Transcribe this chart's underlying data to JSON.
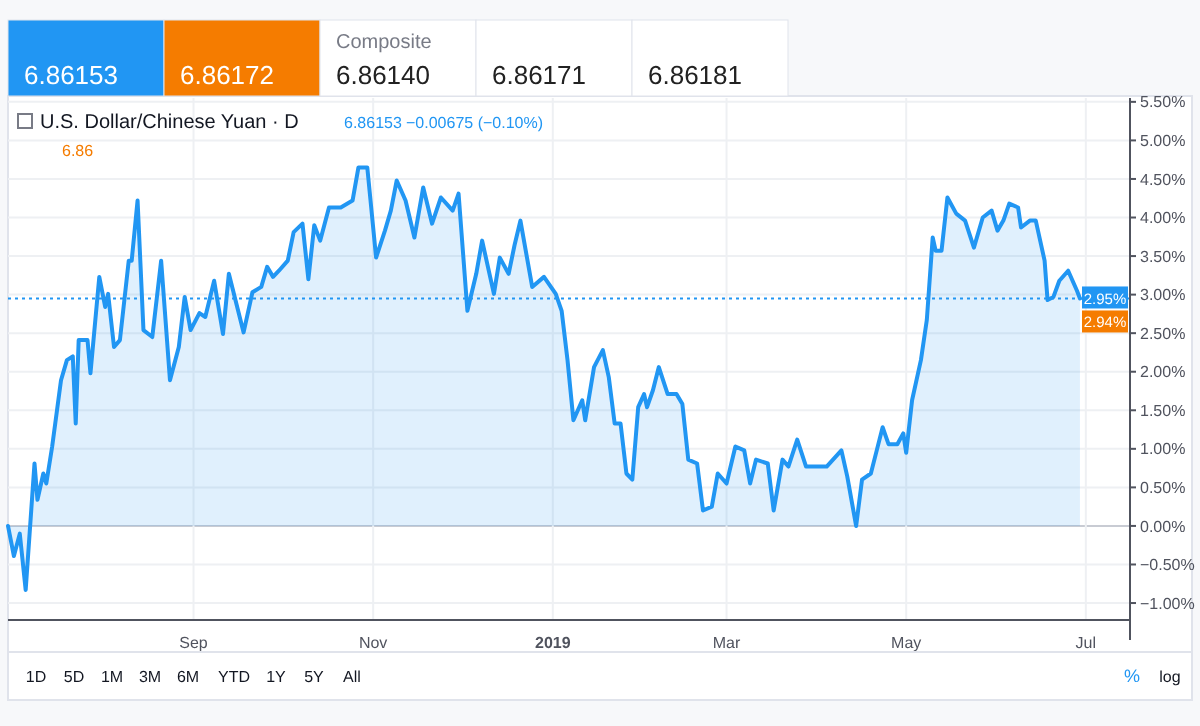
{
  "chart_data": {
    "type": "area",
    "title": "U.S. Dollar/Chinese Yuan · D",
    "series": [
      {
        "color": "#2196f3",
        "x": [
          "2018-06-30",
          "2018-07-02",
          "2018-07-04",
          "2018-07-06",
          "2018-07-09",
          "2018-07-10",
          "2018-07-12",
          "2018-07-13",
          "2018-07-15",
          "2018-07-18",
          "2018-07-20",
          "2018-07-22",
          "2018-07-23",
          "2018-07-24",
          "2018-07-27",
          "2018-07-28",
          "2018-07-31",
          "2018-08-02",
          "2018-08-03",
          "2018-08-05",
          "2018-08-07",
          "2018-08-10",
          "2018-08-11",
          "2018-08-13",
          "2018-08-15",
          "2018-08-18",
          "2018-08-21",
          "2018-08-24",
          "2018-08-27",
          "2018-08-29",
          "2018-08-31",
          "2018-09-03",
          "2018-09-05",
          "2018-09-08",
          "2018-09-11",
          "2018-09-13",
          "2018-09-18",
          "2018-09-21",
          "2018-09-24",
          "2018-09-26",
          "2018-09-28",
          "2018-09-30",
          "2018-10-03",
          "2018-10-05",
          "2018-10-08",
          "2018-10-10",
          "2018-10-12",
          "2018-10-14",
          "2018-10-17",
          "2018-10-21",
          "2018-10-25",
          "2018-10-27",
          "2018-10-30",
          "2018-11-02",
          "2018-11-05",
          "2018-11-07",
          "2018-11-09",
          "2018-11-12",
          "2018-11-15",
          "2018-11-18",
          "2018-11-21",
          "2018-11-24",
          "2018-11-28",
          "2018-11-30",
          "2018-12-03",
          "2018-12-06",
          "2018-12-08",
          "2018-12-12",
          "2018-12-14",
          "2018-12-17",
          "2018-12-19",
          "2018-12-21",
          "2018-12-25",
          "2018-12-29",
          "2019-01-02",
          "2019-01-04",
          "2019-01-06",
          "2019-01-08",
          "2019-01-11",
          "2019-01-12",
          "2019-01-15",
          "2019-01-18",
          "2019-01-20",
          "2019-01-22",
          "2019-01-24",
          "2019-01-26",
          "2019-01-28",
          "2019-01-30",
          "2019-02-01",
          "2019-02-02",
          "2019-02-04",
          "2019-02-06",
          "2019-02-09",
          "2019-02-12",
          "2019-02-14",
          "2019-02-16",
          "2019-02-19",
          "2019-02-21",
          "2019-02-24",
          "2019-02-26",
          "2019-03-01",
          "2019-03-04",
          "2019-03-07",
          "2019-03-09",
          "2019-03-11",
          "2019-03-15",
          "2019-03-17",
          "2019-03-20",
          "2019-03-22",
          "2019-03-25",
          "2019-03-28",
          "2019-04-01",
          "2019-04-04",
          "2019-04-09",
          "2019-04-11",
          "2019-04-14",
          "2019-04-16",
          "2019-04-19",
          "2019-04-21",
          "2019-04-23",
          "2019-04-25",
          "2019-04-28",
          "2019-04-30",
          "2019-05-01",
          "2019-05-03",
          "2019-05-06",
          "2019-05-08",
          "2019-05-10",
          "2019-05-11",
          "2019-05-13",
          "2019-05-15",
          "2019-05-18",
          "2019-05-21",
          "2019-05-24",
          "2019-05-27",
          "2019-05-30",
          "2019-06-01",
          "2019-06-03",
          "2019-06-05",
          "2019-06-08",
          "2019-06-09",
          "2019-06-12",
          "2019-06-14",
          "2019-06-17",
          "2019-06-18",
          "2019-06-20",
          "2019-06-22",
          "2019-06-25",
          "2019-06-28",
          "2019-06-29"
        ],
        "values": [
          0.0,
          -0.39,
          -0.1,
          -0.83,
          0.81,
          0.34,
          0.68,
          0.55,
          1.03,
          1.89,
          2.15,
          2.2,
          1.33,
          2.41,
          2.41,
          1.98,
          3.23,
          2.84,
          3.01,
          2.32,
          2.41,
          3.44,
          3.44,
          4.22,
          2.54,
          2.45,
          3.44,
          1.89,
          2.32,
          2.97,
          2.54,
          2.76,
          2.71,
          3.18,
          2.49,
          3.27,
          2.51,
          3.03,
          3.1,
          3.36,
          3.23,
          3.31,
          3.44,
          3.81,
          3.92,
          3.2,
          3.9,
          3.7,
          4.13,
          4.13,
          4.22,
          4.65,
          4.65,
          3.48,
          3.83,
          4.09,
          4.48,
          4.22,
          3.74,
          4.39,
          3.92,
          4.26,
          4.09,
          4.31,
          2.79,
          3.27,
          3.7,
          3.01,
          3.48,
          3.27,
          3.64,
          3.96,
          3.1,
          3.23,
          3.01,
          2.79,
          2.15,
          1.37,
          1.63,
          1.37,
          2.06,
          2.28,
          1.93,
          1.33,
          1.33,
          0.68,
          0.6,
          1.54,
          1.71,
          1.54,
          1.76,
          2.06,
          1.71,
          1.71,
          1.58,
          0.86,
          0.81,
          0.2,
          0.25,
          0.68,
          0.55,
          1.03,
          0.98,
          0.55,
          0.86,
          0.81,
          0.2,
          0.86,
          0.77,
          1.12,
          0.77,
          0.77,
          0.77,
          0.98,
          0.64,
          0.0,
          0.6,
          0.68,
          0.98,
          1.28,
          1.06,
          1.06,
          1.2,
          0.95,
          1.63,
          2.15,
          2.67,
          3.74,
          3.57,
          3.57,
          4.26,
          4.05,
          3.96,
          3.61,
          4.0,
          4.09,
          3.83,
          3.96,
          4.18,
          4.13,
          3.87,
          3.96,
          3.96,
          3.44,
          2.93,
          2.97,
          3.18,
          3.31,
          3.05,
          2.95
        ]
      }
    ],
    "xlim": [
      "2018-06-30",
      "2019-07-16"
    ],
    "xticks": [
      {
        "value": "2018-09-01",
        "label": "Sep"
      },
      {
        "value": "2018-11-01",
        "label": "Nov"
      },
      {
        "value": "2019-01-01",
        "label": "2019"
      },
      {
        "value": "2019-03-01",
        "label": "Mar"
      },
      {
        "value": "2019-05-01",
        "label": "May"
      },
      {
        "value": "2019-07-01",
        "label": "Jul"
      }
    ],
    "ylim": [
      -1.22,
      5.55
    ],
    "yticks": [
      {
        "value": -1,
        "label": "−1.00%"
      },
      {
        "value": -0.5,
        "label": "−0.50%"
      },
      {
        "value": 0,
        "label": "0.00%"
      },
      {
        "value": 0.5,
        "label": "0.50%"
      },
      {
        "value": 1,
        "label": "1.00%"
      },
      {
        "value": 1.5,
        "label": "1.50%"
      },
      {
        "value": 2,
        "label": "2.00%"
      },
      {
        "value": 2.5,
        "label": "2.50%"
      },
      {
        "value": 3,
        "label": "3.00%"
      },
      {
        "value": 3.5,
        "label": "3.50%"
      },
      {
        "value": 4,
        "label": "4.00%"
      },
      {
        "value": 4.5,
        "label": "4.50%"
      },
      {
        "value": 5,
        "label": "5.00%"
      },
      {
        "value": 5.5,
        "label": "5.50%"
      }
    ],
    "grid": true,
    "ref_lines": [
      {
        "axis": "y",
        "value": 2.95,
        "label": "2.95%",
        "color": "#2196f3",
        "line_style": "dotted"
      }
    ],
    "annotations": [
      "6.86153",
      "6.86172",
      "Composite",
      "6.86140",
      "6.86171",
      "6.86181",
      "6.86153",
      "−0.00675 (−0.10%)",
      "6.86",
      "2.94%",
      "1D",
      "5D",
      "1M",
      "3M",
      "6M",
      "YTD",
      "1Y",
      "5Y",
      "All",
      "%",
      "log"
    ]
  }
}
